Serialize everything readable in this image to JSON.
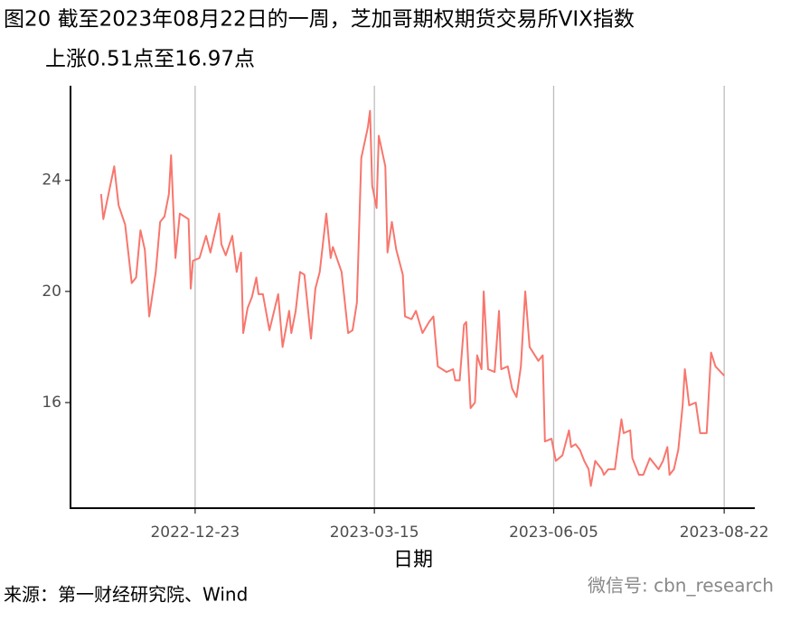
{
  "chart_data": {
    "type": "line",
    "title": "图20  截至2023年08月22日的一周，芝加哥期权期货交易所VIX指数",
    "subtitle": "上涨0.51点至16.97点",
    "x_label": "日期",
    "source": "来源：第一财经研究院、Wind",
    "watermark": "微信号: cbn_research",
    "color": "#f8766d",
    "x": [
      "2022-11-10",
      "2022-11-11",
      "2022-11-16",
      "2022-11-18",
      "2022-11-21",
      "2022-11-24",
      "2022-11-26",
      "2022-11-28",
      "2022-11-30",
      "2022-12-02",
      "2022-12-05",
      "2022-12-07",
      "2022-12-09",
      "2022-12-11",
      "2022-12-12",
      "2022-12-14",
      "2022-12-16",
      "2022-12-20",
      "2022-12-21",
      "2022-12-22",
      "2022-12-25",
      "2022-12-28",
      "2022-12-30",
      "2023-01-03",
      "2023-01-04",
      "2023-01-06",
      "2023-01-09",
      "2023-01-11",
      "2023-01-13",
      "2023-01-14",
      "2023-01-16",
      "2023-01-18",
      "2023-01-20",
      "2023-01-21",
      "2023-01-23",
      "2023-01-26",
      "2023-01-30",
      "2023-02-01",
      "2023-02-04",
      "2023-02-05",
      "2023-02-07",
      "2023-02-09",
      "2023-02-11",
      "2023-02-14",
      "2023-02-16",
      "2023-02-18",
      "2023-02-21",
      "2023-02-23",
      "2023-02-24",
      "2023-02-28",
      "2023-03-03",
      "2023-03-05",
      "2023-03-07",
      "2023-03-09",
      "2023-03-12",
      "2023-03-13",
      "2023-03-14",
      "2023-03-16",
      "2023-03-17",
      "2023-03-20",
      "2023-03-21",
      "2023-03-23",
      "2023-03-25",
      "2023-03-28",
      "2023-03-29",
      "2023-04-01",
      "2023-04-03",
      "2023-04-06",
      "2023-04-09",
      "2023-04-11",
      "2023-04-13",
      "2023-04-17",
      "2023-04-20",
      "2023-04-21",
      "2023-04-23",
      "2023-04-25",
      "2023-04-26",
      "2023-04-28",
      "2023-04-30",
      "2023-05-01",
      "2023-05-03",
      "2023-05-04",
      "2023-05-06",
      "2023-05-09",
      "2023-05-11",
      "2023-05-12",
      "2023-05-15",
      "2023-05-17",
      "2023-05-19",
      "2023-05-21",
      "2023-05-23",
      "2023-05-25",
      "2023-05-29",
      "2023-05-31",
      "2023-06-01",
      "2023-06-04",
      "2023-06-06",
      "2023-06-09",
      "2023-06-12",
      "2023-06-13",
      "2023-06-15",
      "2023-06-17",
      "2023-06-19",
      "2023-06-21",
      "2023-06-22",
      "2023-06-24",
      "2023-06-27",
      "2023-06-28",
      "2023-06-30",
      "2023-07-03",
      "2023-07-06",
      "2023-07-07",
      "2023-07-10",
      "2023-07-11",
      "2023-07-14",
      "2023-07-16",
      "2023-07-19",
      "2023-07-21",
      "2023-07-23",
      "2023-07-25",
      "2023-07-27",
      "2023-07-28",
      "2023-07-30",
      "2023-08-01",
      "2023-08-03",
      "2023-08-04",
      "2023-08-06",
      "2023-08-09",
      "2023-08-11",
      "2023-08-14",
      "2023-08-16",
      "2023-08-18",
      "2023-08-22"
    ],
    "values": [
      23.5,
      22.6,
      24.5,
      23.1,
      22.4,
      20.3,
      20.5,
      22.2,
      21.5,
      19.1,
      20.7,
      22.5,
      22.7,
      23.5,
      24.9,
      21.2,
      22.8,
      22.6,
      20.1,
      21.1,
      21.2,
      22.0,
      21.4,
      22.8,
      21.7,
      21.3,
      22.0,
      20.7,
      21.4,
      18.5,
      19.4,
      19.8,
      20.5,
      19.9,
      19.9,
      18.6,
      19.9,
      18.0,
      19.3,
      18.5,
      19.3,
      20.7,
      20.6,
      18.3,
      20.1,
      20.7,
      22.8,
      21.2,
      21.6,
      20.7,
      18.5,
      18.6,
      19.6,
      24.8,
      25.9,
      26.5,
      23.8,
      23.0,
      25.6,
      24.5,
      21.4,
      22.5,
      21.5,
      20.6,
      19.1,
      19.0,
      19.3,
      18.5,
      18.9,
      19.1,
      17.3,
      17.1,
      17.2,
      16.8,
      16.8,
      18.8,
      18.9,
      15.8,
      16.0,
      17.7,
      17.2,
      20.0,
      17.2,
      17.1,
      19.3,
      17.2,
      17.3,
      16.5,
      16.2,
      17.3,
      20.0,
      18.0,
      17.5,
      17.7,
      14.6,
      14.7,
      13.9,
      14.1,
      15.0,
      14.4,
      14.5,
      14.3,
      13.9,
      13.6,
      13.0,
      13.9,
      13.6,
      13.4,
      13.6,
      13.6,
      15.4,
      14.9,
      15.0,
      14.0,
      13.4,
      13.4,
      14.0,
      13.8,
      13.6,
      13.9,
      14.4,
      13.4,
      13.6,
      14.3,
      15.9,
      17.2,
      15.9,
      16.0,
      14.9,
      14.9,
      17.8,
      17.3,
      16.97
    ],
    "xlim": [
      "2022-10-27",
      "2023-09-05"
    ],
    "xticks": [
      "2022-12-23",
      "2023-03-15",
      "2023-06-05",
      "2023-08-22"
    ],
    "ylim": [
      12.2,
      27.4
    ],
    "yticks": [
      16,
      20,
      24
    ],
    "grid": "x"
  }
}
